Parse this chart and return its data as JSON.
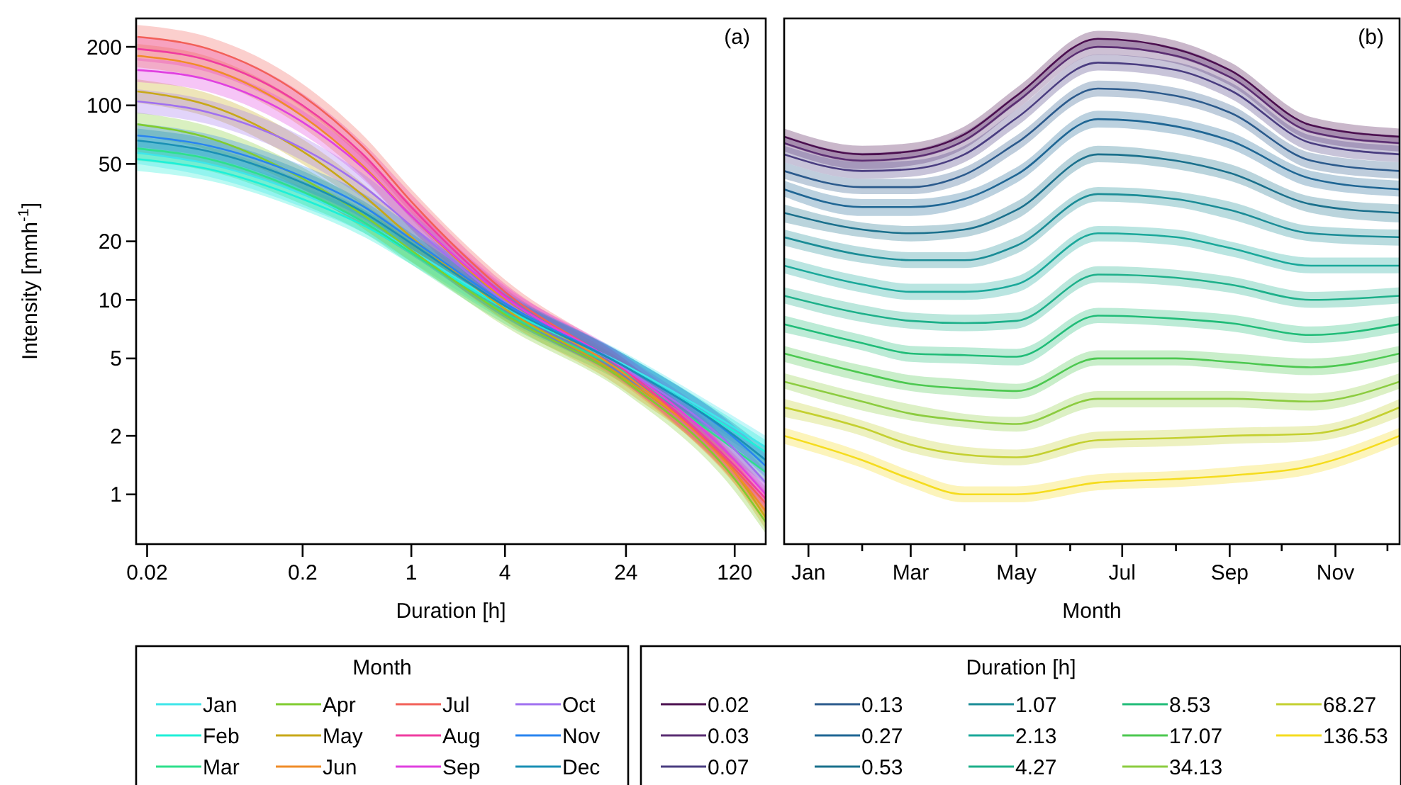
{
  "chart_data": [
    {
      "type": "line",
      "xlabel": "Duration [h]",
      "ylabel": "Intensity [mmh$^{-1}$]",
      "legend_title": "Month",
      "legend": "bottom",
      "log": "xy",
      "grid": false,
      "marker": "none",
      "annotations": [
        "(a)"
      ],
      "xlim": [
        0.017,
        190
      ],
      "ylim": [
        0.555,
        280
      ],
      "xticks": [
        0.02,
        0.2,
        1,
        4,
        24,
        120
      ],
      "yticks": [
        1,
        2,
        5,
        10,
        20,
        50,
        100,
        200
      ],
      "x": [
        0.0173,
        0.05,
        0.2,
        0.5,
        1,
        4,
        24,
        120,
        190
      ],
      "series": [
        {
          "name": "Jan",
          "color": "#3ee6ea",
          "values": [
            57,
            50,
            35,
            25,
            18,
            9.2,
            4.6,
            2.2,
            1.75
          ],
          "lower": [
            50,
            43,
            30,
            22,
            15.7,
            8.0,
            4.0,
            1.9,
            1.52
          ],
          "upper": [
            66,
            58,
            40,
            29,
            21,
            10.6,
            5.3,
            2.5,
            2.0
          ]
        },
        {
          "name": "Feb",
          "color": "#1ef0d8",
          "values": [
            53,
            47,
            33,
            24,
            17.5,
            9.0,
            4.5,
            2.1,
            1.65
          ],
          "lower": [
            46,
            41,
            29,
            21,
            15.2,
            7.8,
            3.9,
            1.83,
            1.44
          ],
          "upper": [
            61,
            54,
            38,
            28,
            20,
            10.4,
            5.2,
            2.4,
            1.9
          ]
        },
        {
          "name": "Mar",
          "color": "#2ee08c",
          "values": [
            60,
            53,
            36,
            25,
            17.5,
            8.6,
            4.2,
            1.7,
            1.3
          ],
          "lower": [
            52,
            46,
            31,
            22,
            15.2,
            7.5,
            3.65,
            1.48,
            1.13
          ],
          "upper": [
            69,
            61,
            41,
            29,
            20,
            9.9,
            4.8,
            1.96,
            1.5
          ]
        },
        {
          "name": "Apr",
          "color": "#80cc30",
          "values": [
            80,
            68,
            42,
            27,
            18,
            8.4,
            3.8,
            1.2,
            0.72
          ],
          "lower": [
            70,
            59,
            37,
            23,
            15.7,
            7.3,
            3.3,
            1.04,
            0.63
          ],
          "upper": [
            92,
            78,
            48,
            31,
            21,
            9.7,
            4.4,
            1.38,
            0.83
          ]
        },
        {
          "name": "May",
          "color": "#c8a818",
          "values": [
            118,
            100,
            58,
            34,
            21,
            9.0,
            3.9,
            1.3,
            0.76
          ],
          "lower": [
            103,
            87,
            50,
            30,
            18.3,
            7.8,
            3.4,
            1.13,
            0.66
          ],
          "upper": [
            136,
            115,
            67,
            39,
            24,
            10.4,
            4.5,
            1.5,
            0.87
          ]
        },
        {
          "name": "Jun",
          "color": "#f08c28",
          "values": [
            180,
            155,
            88,
            48,
            27,
            10,
            4.1,
            1.3,
            0.82
          ],
          "lower": [
            157,
            135,
            77,
            42,
            23,
            8.7,
            3.6,
            1.13,
            0.71
          ],
          "upper": [
            207,
            178,
            101,
            55,
            31,
            11.5,
            4.7,
            1.5,
            0.94
          ]
        },
        {
          "name": "Jul",
          "color": "#f26058",
          "values": [
            225,
            195,
            112,
            60,
            32,
            11,
            4.3,
            1.35,
            0.9
          ],
          "lower": [
            196,
            170,
            97,
            52,
            28,
            9.6,
            3.7,
            1.17,
            0.78
          ],
          "upper": [
            259,
            224,
            129,
            69,
            37,
            12.7,
            4.9,
            1.55,
            1.04
          ]
        },
        {
          "name": "Aug",
          "color": "#f03ca0",
          "values": [
            195,
            170,
            100,
            55,
            30,
            10.5,
            4.3,
            1.4,
            0.95
          ],
          "lower": [
            170,
            148,
            87,
            48,
            26,
            9.1,
            3.7,
            1.22,
            0.83
          ],
          "upper": [
            224,
            196,
            115,
            63,
            35,
            12.1,
            4.9,
            1.6,
            1.09
          ]
        },
        {
          "name": "Sep",
          "color": "#e040e0",
          "values": [
            152,
            135,
            82,
            47,
            27,
            10.3,
            4.4,
            1.5,
            1.0
          ],
          "lower": [
            132,
            117,
            71,
            41,
            23,
            9.0,
            3.8,
            1.3,
            0.87
          ],
          "upper": [
            175,
            155,
            94,
            54,
            31,
            11.8,
            5.1,
            1.73,
            1.15
          ]
        },
        {
          "name": "Oct",
          "color": "#a070f0",
          "values": [
            105,
            92,
            60,
            38,
            24,
            9.8,
            4.4,
            1.7,
            1.15
          ],
          "lower": [
            91,
            80,
            52,
            33,
            21,
            8.5,
            3.8,
            1.48,
            1.0
          ],
          "upper": [
            121,
            106,
            69,
            44,
            28,
            11.3,
            5.1,
            1.96,
            1.32
          ]
        },
        {
          "name": "Nov",
          "color": "#2884f0",
          "values": [
            70,
            62,
            43,
            30,
            20.5,
            9.6,
            4.5,
            1.95,
            1.4
          ],
          "lower": [
            61,
            54,
            37,
            26,
            17.8,
            8.4,
            3.9,
            1.7,
            1.22
          ],
          "upper": [
            81,
            71,
            49,
            35,
            24,
            11,
            5.2,
            2.24,
            1.61
          ]
        },
        {
          "name": "Dec",
          "color": "#1a90b4",
          "values": [
            66,
            58,
            40,
            28,
            19.5,
            9.3,
            4.5,
            2.0,
            1.5
          ],
          "lower": [
            57,
            50,
            35,
            24,
            17,
            8.1,
            3.9,
            1.74,
            1.3
          ],
          "upper": [
            76,
            67,
            46,
            32,
            22,
            10.7,
            5.2,
            2.3,
            1.73
          ]
        }
      ]
    },
    {
      "type": "line",
      "xlabel": "Month",
      "legend_title": "Duration [h]",
      "legend": "bottom",
      "log": "y",
      "grid": false,
      "marker": "none",
      "tick_labels": "x",
      "annotations": [
        "(b)"
      ],
      "xlim": [
        "--01-01",
        "--12-22"
      ],
      "ylim": [
        0.555,
        280
      ],
      "xticks": [
        {
          "value": "--01-15",
          "label": "Jan"
        },
        {
          "value": "--02-15",
          "label": null
        },
        {
          "value": "--03-15",
          "label": "Mar"
        },
        {
          "value": "--04-15",
          "label": null
        },
        {
          "value": "--05-15",
          "label": "May"
        },
        {
          "value": "--06-15",
          "label": null
        },
        {
          "value": "--07-15",
          "label": "Jul"
        },
        {
          "value": "--08-15",
          "label": null
        },
        {
          "value": "--09-15",
          "label": "Sep"
        },
        {
          "value": "--10-15",
          "label": null
        },
        {
          "value": "--11-15",
          "label": "Nov"
        },
        {
          "value": "--12-15",
          "label": null
        }
      ],
      "x": [
        "--01-01",
        "--02-15",
        "--03-15",
        "--04-15",
        "--05-15",
        "--07-01",
        "--08-15",
        "--09-15",
        "--11-01",
        "--12-22"
      ],
      "series": [
        {
          "name": "0.02",
          "color": "#4b0f4f",
          "values": [
            69,
            56,
            58,
            71,
            112,
            220,
            195,
            152,
            79,
            69
          ],
          "lower": [
            63,
            51,
            53,
            65,
            102,
            200,
            177,
            138,
            72,
            63
          ],
          "upper": [
            76,
            62,
            64,
            78,
            123,
            242,
            215,
            167,
            87,
            76
          ]
        },
        {
          "name": "0.03",
          "color": "#5a2d72",
          "values": [
            64,
            52,
            54,
            66,
            104,
            200,
            180,
            140,
            73,
            64
          ],
          "lower": [
            58,
            47,
            49,
            60,
            95,
            182,
            164,
            127,
            66,
            58
          ],
          "upper": [
            70,
            57,
            59,
            73,
            114,
            220,
            198,
            154,
            80,
            70
          ]
        },
        {
          "name": "0.07",
          "color": "#4a3d80",
          "values": [
            56,
            46,
            47,
            56,
            86,
            166,
            152,
            120,
            64,
            56
          ],
          "lower": [
            51,
            42,
            43,
            51,
            78,
            151,
            138,
            109,
            58,
            51
          ],
          "upper": [
            62,
            51,
            52,
            62,
            95,
            183,
            167,
            132,
            70,
            62
          ]
        },
        {
          "name": "0.13",
          "color": "#2b5a8c",
          "values": [
            46,
            38,
            38,
            44,
            64,
            122,
            112,
            92,
            52,
            46
          ],
          "lower": [
            42,
            35,
            35,
            40,
            58,
            111,
            102,
            84,
            47,
            42
          ],
          "upper": [
            51,
            42,
            42,
            48,
            70,
            134,
            123,
            101,
            57,
            51
          ]
        },
        {
          "name": "0.27",
          "color": "#1f6694",
          "values": [
            37,
            30,
            30,
            33,
            44,
            85,
            78,
            66,
            42,
            37
          ],
          "lower": [
            34,
            27,
            27,
            30,
            40,
            77,
            71,
            60,
            38,
            34
          ],
          "upper": [
            41,
            33,
            33,
            36,
            48,
            94,
            86,
            73,
            46,
            41
          ]
        },
        {
          "name": "0.53",
          "color": "#1a708c",
          "values": [
            28,
            23,
            22,
            23,
            29,
            56,
            52,
            45,
            31,
            28
          ],
          "lower": [
            25,
            21,
            20,
            21,
            26,
            51,
            47,
            41,
            28,
            25
          ],
          "upper": [
            31,
            25,
            24,
            25,
            32,
            62,
            57,
            50,
            34,
            31
          ]
        },
        {
          "name": "1.07",
          "color": "#1a8c96",
          "values": [
            21,
            17,
            16,
            16,
            19,
            35,
            33,
            29,
            22,
            21
          ],
          "lower": [
            19,
            15.5,
            14.6,
            14.6,
            17.3,
            32,
            30,
            26,
            20,
            19
          ],
          "upper": [
            23,
            18.7,
            17.6,
            17.6,
            21,
            38,
            36,
            32,
            24,
            23
          ]
        },
        {
          "name": "2.13",
          "color": "#1aa89a",
          "values": [
            15,
            12,
            11,
            11,
            12,
            22,
            21,
            18.5,
            15,
            15
          ],
          "lower": [
            13.7,
            10.9,
            10,
            10,
            10.9,
            20,
            19.1,
            16.8,
            13.7,
            13.7
          ],
          "upper": [
            16.5,
            13.2,
            12.1,
            12.1,
            13.2,
            24,
            23,
            20,
            16.5,
            16.5
          ]
        },
        {
          "name": "4.27",
          "color": "#1db08a",
          "values": [
            10.5,
            8.5,
            7.8,
            7.6,
            7.8,
            13.5,
            13,
            12,
            10,
            10.5
          ],
          "lower": [
            9.6,
            7.7,
            7.1,
            6.9,
            7.1,
            12.3,
            11.8,
            10.9,
            9.1,
            9.6
          ],
          "upper": [
            11.6,
            9.4,
            8.6,
            8.4,
            8.6,
            14.9,
            14.3,
            13.2,
            11,
            11.6
          ]
        },
        {
          "name": "8.53",
          "color": "#20bc78",
          "values": [
            7.5,
            6.0,
            5.3,
            5.2,
            5.1,
            8.3,
            8.0,
            7.6,
            6.6,
            7.5
          ],
          "lower": [
            6.8,
            5.5,
            4.8,
            4.7,
            4.6,
            7.6,
            7.3,
            6.9,
            6.0,
            6.8
          ],
          "upper": [
            8.3,
            6.6,
            5.8,
            5.7,
            5.6,
            9.1,
            8.8,
            8.4,
            7.3,
            8.3
          ]
        },
        {
          "name": "17.07",
          "color": "#4cc850",
          "values": [
            5.3,
            4.2,
            3.7,
            3.5,
            3.4,
            5.0,
            5.0,
            4.8,
            4.5,
            5.3
          ],
          "lower": [
            4.8,
            3.8,
            3.4,
            3.2,
            3.1,
            4.6,
            4.6,
            4.4,
            4.1,
            4.8
          ],
          "upper": [
            5.8,
            4.6,
            4.1,
            3.9,
            3.7,
            5.5,
            5.5,
            5.3,
            5.0,
            5.8
          ]
        },
        {
          "name": "34.13",
          "color": "#8ccc40",
          "values": [
            3.8,
            3.0,
            2.6,
            2.4,
            2.3,
            3.1,
            3.1,
            3.1,
            3.0,
            3.8
          ],
          "lower": [
            3.5,
            2.7,
            2.4,
            2.2,
            2.1,
            2.8,
            2.8,
            2.8,
            2.7,
            3.5
          ],
          "upper": [
            4.2,
            3.3,
            2.9,
            2.6,
            2.5,
            3.4,
            3.4,
            3.4,
            3.3,
            4.2
          ]
        },
        {
          "name": "68.27",
          "color": "#c4d030",
          "values": [
            2.8,
            2.2,
            1.8,
            1.6,
            1.55,
            1.9,
            1.95,
            2.0,
            2.05,
            2.8
          ],
          "lower": [
            2.5,
            2.0,
            1.64,
            1.46,
            1.41,
            1.73,
            1.77,
            1.82,
            1.87,
            2.5
          ],
          "upper": [
            3.1,
            2.4,
            2.0,
            1.76,
            1.7,
            2.1,
            2.15,
            2.2,
            2.25,
            3.1
          ]
        },
        {
          "name": "136.53",
          "color": "#f5dc1e",
          "values": [
            2.0,
            1.5,
            1.2,
            1.0,
            1.0,
            1.15,
            1.2,
            1.25,
            1.4,
            2.0
          ],
          "lower": [
            1.82,
            1.37,
            1.09,
            0.91,
            0.91,
            1.05,
            1.09,
            1.14,
            1.27,
            1.82
          ],
          "upper": [
            2.2,
            1.65,
            1.32,
            1.1,
            1.1,
            1.27,
            1.32,
            1.38,
            1.54,
            2.2
          ]
        }
      ]
    }
  ]
}
